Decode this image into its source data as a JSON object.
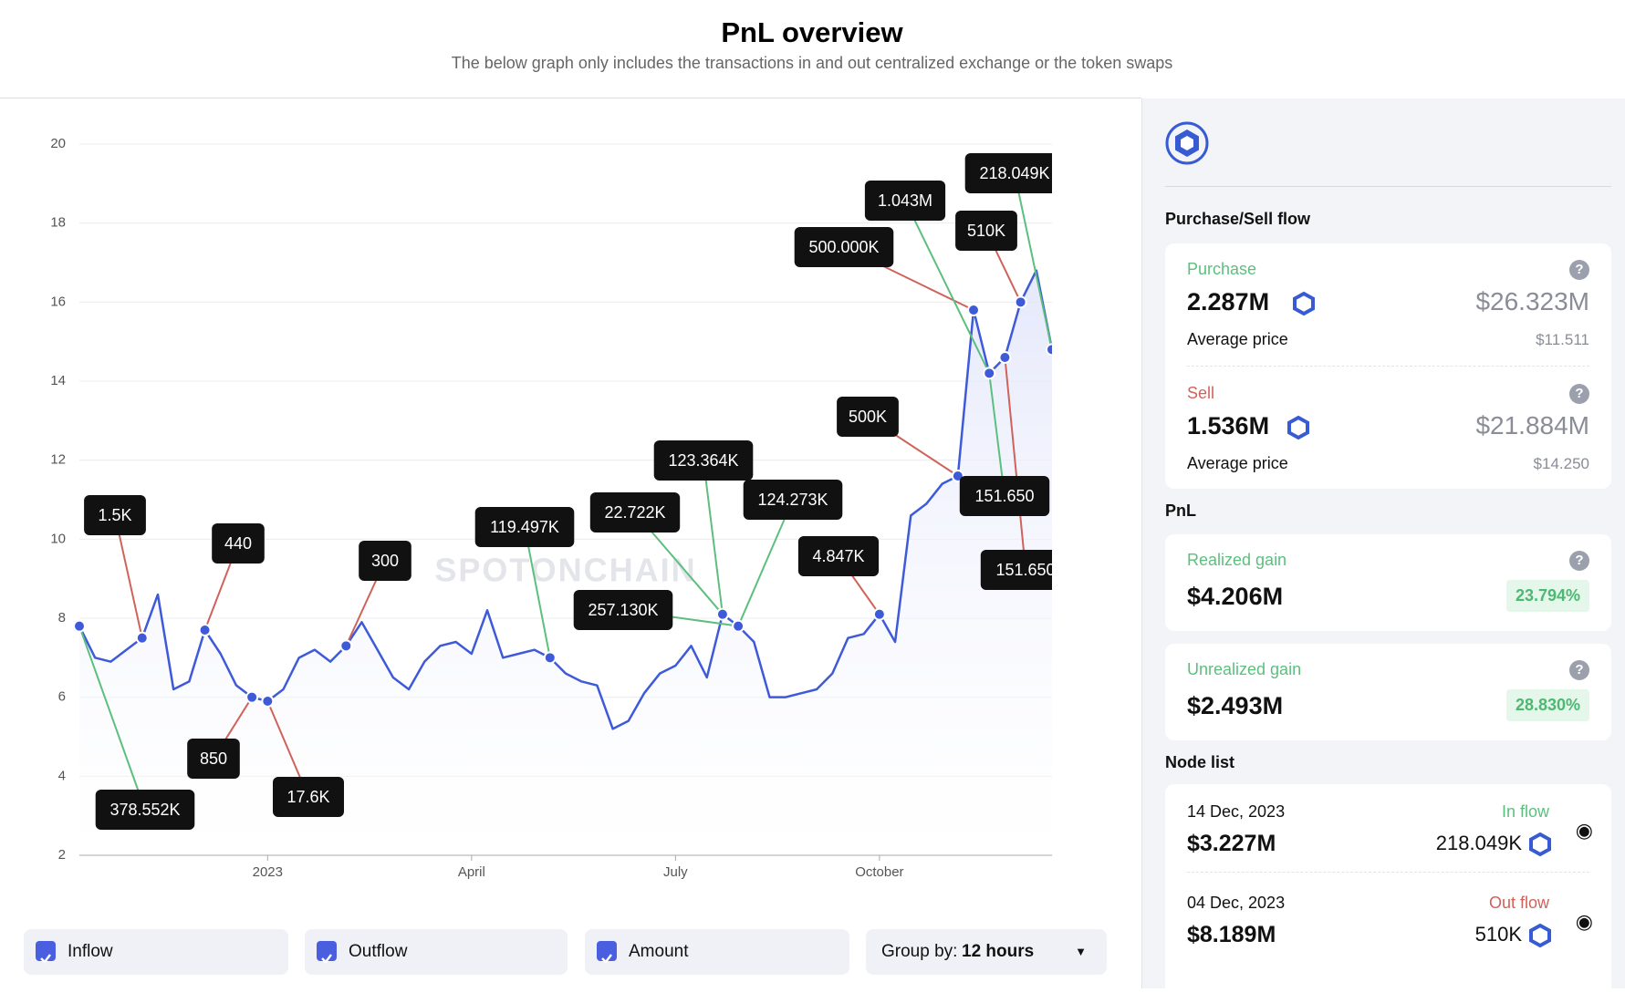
{
  "header": {
    "title": "PnL overview",
    "subtitle": "The below graph only includes the transactions in and out centralized exchange or the token swaps"
  },
  "chart_data": {
    "type": "line",
    "watermark": "SPOTONCHAIN",
    "categories": [
      null,
      null,
      null,
      null,
      null,
      null,
      null,
      null,
      null,
      null,
      null,
      null,
      "2023",
      null,
      null,
      null,
      null,
      null,
      null,
      null,
      null,
      null,
      null,
      null,
      null,
      "April",
      null,
      null,
      null,
      null,
      null,
      null,
      null,
      null,
      null,
      null,
      null,
      null,
      "July",
      null,
      null,
      null,
      null,
      null,
      null,
      null,
      null,
      null,
      null,
      null,
      null,
      "October",
      null,
      null,
      null,
      null,
      null,
      null,
      null,
      null,
      null,
      null,
      null
    ],
    "values": [
      7.8,
      7.0,
      6.9,
      7.2,
      7.5,
      8.6,
      6.2,
      6.4,
      7.7,
      7.1,
      6.3,
      6.0,
      5.9,
      6.2,
      7.0,
      7.2,
      6.9,
      7.3,
      7.9,
      7.2,
      6.5,
      6.2,
      6.9,
      7.3,
      7.4,
      7.1,
      8.2,
      7.0,
      7.1,
      7.2,
      7.0,
      6.6,
      6.4,
      6.3,
      5.2,
      5.4,
      6.1,
      6.6,
      6.8,
      7.3,
      6.5,
      8.1,
      7.8,
      7.4,
      6.0,
      6.0,
      6.1,
      6.2,
      6.6,
      7.5,
      7.6,
      8.1,
      7.4,
      10.6,
      10.9,
      11.4,
      11.6,
      15.8,
      14.2,
      14.6,
      16.0,
      16.8,
      14.8
    ],
    "color": "#3e5ad8",
    "in_color": "#5cbf7e",
    "out_color": "#d0625a",
    "ylim": [
      2,
      20
    ],
    "yticks": [
      2,
      4,
      6,
      8,
      10,
      12,
      14,
      16,
      18,
      20
    ],
    "grid": true,
    "annotations": [
      {
        "text": "378.552K",
        "at": 0,
        "flow": "in"
      },
      {
        "text": "1.5K",
        "at": 4,
        "flow": "out"
      },
      {
        "text": "440",
        "at": 8,
        "flow": "out"
      },
      {
        "text": "850",
        "at": 11,
        "flow": "out"
      },
      {
        "text": "17.6K",
        "at": 12,
        "flow": "out"
      },
      {
        "text": "300",
        "at": 17,
        "flow": "out"
      },
      {
        "text": "119.497K",
        "at": 30,
        "flow": "in"
      },
      {
        "text": "22.722K",
        "at": 41,
        "flow": "in"
      },
      {
        "text": "123.364K",
        "at": 41,
        "flow": "in"
      },
      {
        "text": "257.130K",
        "at": 42,
        "flow": "in"
      },
      {
        "text": "124.273K",
        "at": 42,
        "flow": "in"
      },
      {
        "text": "4.847K",
        "at": 51,
        "flow": "out"
      },
      {
        "text": "500K",
        "at": 56,
        "flow": "out"
      },
      {
        "text": "500.000K",
        "at": 57,
        "flow": "out"
      },
      {
        "text": "1.043M",
        "at": 58,
        "flow": "in"
      },
      {
        "text": "151.650",
        "at": 58,
        "flow": "in"
      },
      {
        "text": "151.650",
        "at": 59,
        "flow": "out"
      },
      {
        "text": "510K",
        "at": 60,
        "flow": "out"
      },
      {
        "text": "218.049K",
        "at": 62,
        "flow": "in"
      }
    ]
  },
  "controls": {
    "inflow": "Inflow",
    "outflow": "Outflow",
    "amount": "Amount",
    "group_label": "Group by:",
    "group_value": "12 hours"
  },
  "panel": {
    "flow_title": "Purchase/Sell flow",
    "purchase": {
      "label": "Purchase",
      "amount": "2.287M",
      "usd": "$26.323M",
      "avg_label": "Average price",
      "avg": "$11.511"
    },
    "sell": {
      "label": "Sell",
      "amount": "1.536M",
      "usd": "$21.884M",
      "avg_label": "Average price",
      "avg": "$14.250"
    },
    "pnl_title": "PnL",
    "realized": {
      "label": "Realized gain",
      "value": "$4.206M",
      "pct": "23.794%"
    },
    "unrealized": {
      "label": "Unrealized gain",
      "value": "$2.493M",
      "pct": "28.830%"
    },
    "node_title": "Node list",
    "nodes": [
      {
        "date": "14 Dec, 2023",
        "value": "$3.227M",
        "flow": "In flow",
        "amount": "218.049K"
      },
      {
        "date": "04 Dec, 2023",
        "value": "$8.189M",
        "flow": "Out flow",
        "amount": "510K"
      }
    ]
  }
}
